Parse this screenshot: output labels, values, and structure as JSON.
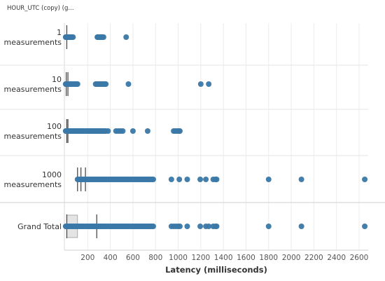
{
  "chart_data": {
    "type": "scatter",
    "header": "HOUR_UTC (copy) (g...",
    "xlabel": "Latency (milliseconds)",
    "xlim": [
      0,
      2700
    ],
    "x_ticks": [
      200,
      400,
      600,
      800,
      1000,
      1200,
      1400,
      1600,
      1800,
      2000,
      2200,
      2400,
      2600
    ],
    "point_color": "#3a78a8",
    "rows": [
      {
        "label_lines": [
          "1",
          "measurements"
        ],
        "points": [
          5,
          8,
          12,
          20,
          25,
          30,
          35,
          40,
          45,
          50,
          55,
          60,
          70,
          285,
          290,
          295,
          300,
          305,
          310,
          315,
          320,
          325,
          330,
          340,
          540
        ],
        "ref_lines": [
          15
        ],
        "box": null
      },
      {
        "label_lines": [
          "10",
          "measurements"
        ],
        "points": [
          5,
          10,
          15,
          20,
          30,
          40,
          50,
          60,
          70,
          80,
          90,
          100,
          110,
          270,
          280,
          290,
          300,
          310,
          320,
          330,
          340,
          350,
          360,
          560,
          1200,
          1270
        ],
        "ref_lines": [
          10,
          25
        ],
        "box": null
      },
      {
        "label_lines": [
          "100",
          "measurements"
        ],
        "points": [
          5,
          10,
          20,
          30,
          40,
          50,
          60,
          70,
          80,
          90,
          100,
          110,
          120,
          130,
          140,
          150,
          160,
          170,
          180,
          190,
          200,
          210,
          220,
          230,
          240,
          250,
          260,
          270,
          280,
          290,
          300,
          310,
          320,
          330,
          340,
          350,
          360,
          380,
          450,
          470,
          490,
          510,
          600,
          730,
          960,
          975,
          990,
          1005,
          1015
        ],
        "ref_lines": [
          15,
          25
        ],
        "box": null
      },
      {
        "label_lines": [
          "1000",
          "measurements"
        ],
        "points": [
          110,
          120,
          130,
          140,
          150,
          160,
          170,
          180,
          190,
          200,
          210,
          220,
          230,
          240,
          250,
          260,
          270,
          280,
          290,
          300,
          310,
          320,
          330,
          340,
          350,
          360,
          370,
          380,
          390,
          400,
          410,
          420,
          430,
          440,
          450,
          460,
          470,
          480,
          490,
          500,
          510,
          520,
          530,
          540,
          550,
          560,
          570,
          580,
          590,
          600,
          610,
          620,
          630,
          640,
          650,
          660,
          670,
          680,
          690,
          700,
          710,
          720,
          730,
          740,
          750,
          760,
          770,
          780,
          940,
          1010,
          1080,
          1195,
          1245,
          1310,
          1330,
          1340,
          1800,
          2090,
          2650
        ],
        "ref_lines": [
          110,
          140,
          180
        ],
        "box": null
      },
      {
        "label_lines": [
          "Grand Total"
        ],
        "points": [
          5,
          10,
          20,
          30,
          40,
          50,
          60,
          70,
          80,
          90,
          100,
          110,
          120,
          130,
          140,
          150,
          160,
          170,
          180,
          190,
          200,
          210,
          220,
          230,
          240,
          250,
          260,
          270,
          280,
          290,
          300,
          310,
          320,
          330,
          340,
          350,
          360,
          370,
          380,
          390,
          400,
          410,
          420,
          430,
          440,
          450,
          460,
          470,
          480,
          490,
          500,
          510,
          520,
          530,
          540,
          550,
          560,
          570,
          580,
          590,
          600,
          610,
          620,
          630,
          640,
          650,
          660,
          670,
          680,
          690,
          700,
          710,
          720,
          730,
          740,
          750,
          760,
          770,
          780,
          940,
          960,
          980,
          1000,
          1015,
          1080,
          1195,
          1245,
          1270,
          1310,
          1330,
          1340,
          1800,
          2090,
          2650
        ],
        "ref_lines": [
          15,
          280
        ],
        "box": [
          15,
          110
        ]
      }
    ]
  }
}
